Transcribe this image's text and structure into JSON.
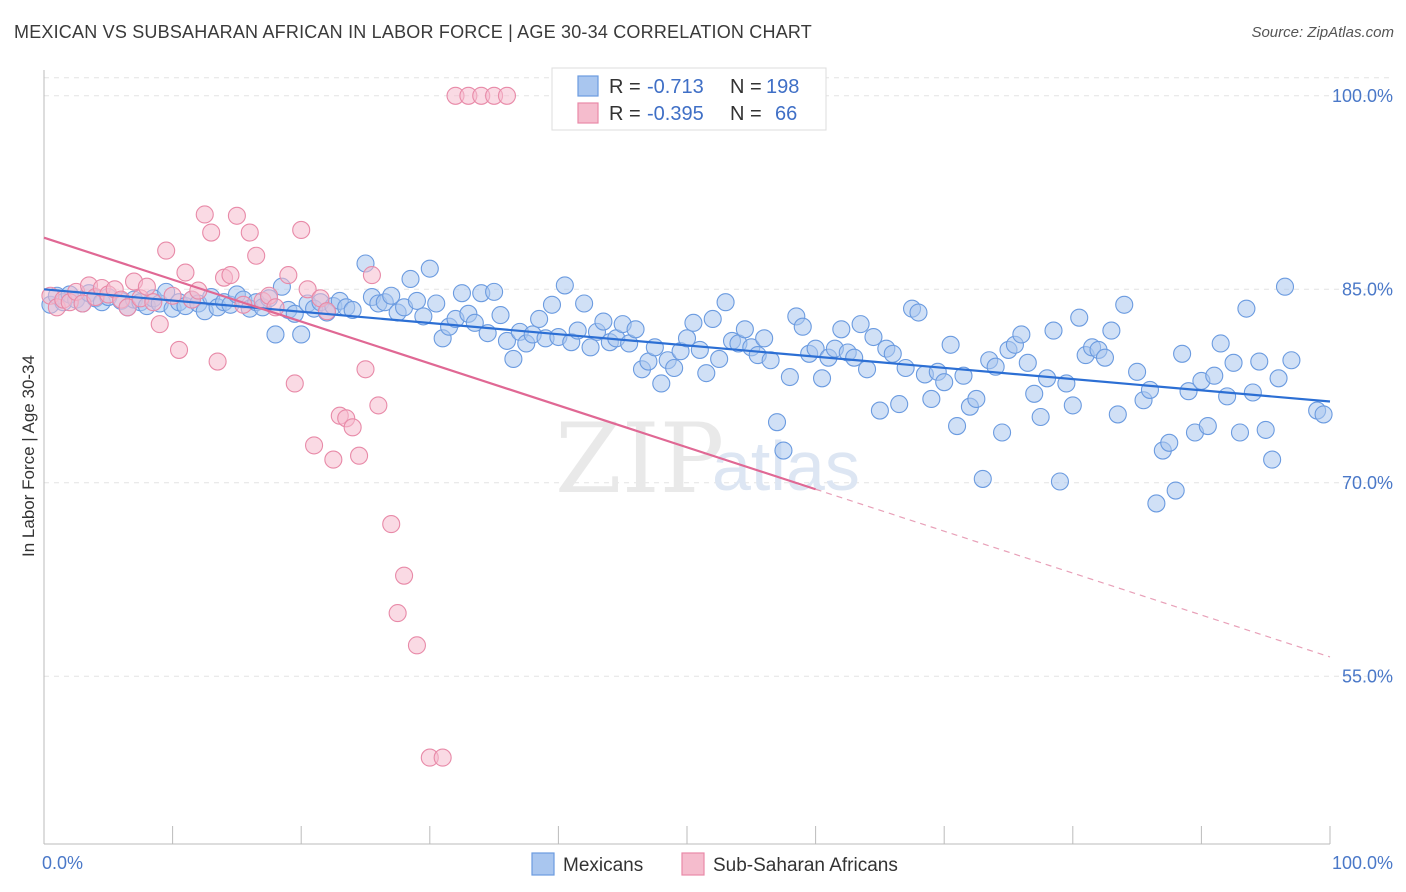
{
  "title": "MEXICAN VS SUBSAHARAN AFRICAN IN LABOR FORCE | AGE 30-34 CORRELATION CHART",
  "source": "Source: ZipAtlas.com",
  "watermark": {
    "a": "ZIP",
    "b": "atlas"
  },
  "chart_data": {
    "type": "scatter",
    "xlabel": "",
    "ylabel": "In Labor Force | Age 30-34",
    "xlim": [
      0,
      100
    ],
    "ylim": [
      42,
      102
    ],
    "x_tick_labels": [
      "0.0%",
      "100.0%"
    ],
    "y_ticks": [
      55,
      70,
      85,
      100
    ],
    "y_tick_labels": [
      "55.0%",
      "70.0%",
      "85.0%",
      "100.0%"
    ],
    "grid": true,
    "legend_position": "top-center",
    "series": [
      {
        "name": "Mexicans",
        "color": "#6b9be0",
        "fill": "#a9c6ef",
        "R": "-0.713",
        "N": "198",
        "trend": {
          "x0": 0,
          "y0": 85.0,
          "x1": 100,
          "y1": 76.3
        },
        "points": [
          [
            0.5,
            83.8
          ],
          [
            1,
            84.5
          ],
          [
            1.5,
            84.0
          ],
          [
            2,
            84.6
          ],
          [
            2.5,
            84.2
          ],
          [
            3,
            83.9
          ],
          [
            3.5,
            84.7
          ],
          [
            4,
            84.3
          ],
          [
            4.5,
            84.0
          ],
          [
            5,
            84.4
          ],
          [
            6,
            84.1
          ],
          [
            6.5,
            83.6
          ],
          [
            7,
            84.2
          ],
          [
            7.5,
            84.0
          ],
          [
            8,
            83.7
          ],
          [
            8.5,
            84.3
          ],
          [
            9,
            83.9
          ],
          [
            9.5,
            84.8
          ],
          [
            10,
            83.5
          ],
          [
            10.5,
            84.0
          ],
          [
            11,
            83.7
          ],
          [
            11.5,
            84.2
          ],
          [
            12,
            83.9
          ],
          [
            12.5,
            83.3
          ],
          [
            13,
            84.4
          ],
          [
            13.5,
            83.6
          ],
          [
            14,
            84.0
          ],
          [
            14.5,
            83.8
          ],
          [
            15,
            84.6
          ],
          [
            15.5,
            84.2
          ],
          [
            16,
            83.5
          ],
          [
            16.5,
            84.0
          ],
          [
            17,
            83.6
          ],
          [
            17.5,
            84.3
          ],
          [
            18,
            81.5
          ],
          [
            18.5,
            85.2
          ],
          [
            19,
            83.4
          ],
          [
            19.5,
            83.1
          ],
          [
            20,
            81.5
          ],
          [
            20.5,
            83.9
          ],
          [
            21,
            83.5
          ],
          [
            21.5,
            84.0
          ],
          [
            22,
            83.2
          ],
          [
            22.5,
            83.7
          ],
          [
            23,
            84.1
          ],
          [
            23.5,
            83.6
          ],
          [
            24,
            83.4
          ],
          [
            25,
            87.0
          ],
          [
            25.5,
            84.4
          ],
          [
            26,
            83.9
          ],
          [
            26.5,
            84.0
          ],
          [
            27,
            84.5
          ],
          [
            27.5,
            83.2
          ],
          [
            28,
            83.6
          ],
          [
            28.5,
            85.8
          ],
          [
            29,
            84.1
          ],
          [
            29.5,
            82.9
          ],
          [
            30,
            86.6
          ],
          [
            30.5,
            83.9
          ],
          [
            31,
            81.2
          ],
          [
            31.5,
            82.1
          ],
          [
            32,
            82.7
          ],
          [
            32.5,
            84.7
          ],
          [
            33,
            83.1
          ],
          [
            33.5,
            82.4
          ],
          [
            34,
            84.7
          ],
          [
            34.5,
            81.6
          ],
          [
            35,
            84.8
          ],
          [
            35.5,
            83.0
          ],
          [
            36,
            81.0
          ],
          [
            36.5,
            79.6
          ],
          [
            37,
            81.7
          ],
          [
            37.5,
            80.8
          ],
          [
            38,
            81.5
          ],
          [
            38.5,
            82.7
          ],
          [
            39,
            81.2
          ],
          [
            39.5,
            83.8
          ],
          [
            40,
            81.3
          ],
          [
            40.5,
            85.3
          ],
          [
            41,
            80.9
          ],
          [
            41.5,
            81.8
          ],
          [
            42,
            83.9
          ],
          [
            42.5,
            80.5
          ],
          [
            43,
            81.7
          ],
          [
            43.5,
            82.5
          ],
          [
            44,
            80.9
          ],
          [
            44.5,
            81.2
          ],
          [
            45,
            82.3
          ],
          [
            45.5,
            80.8
          ],
          [
            46,
            81.9
          ],
          [
            46.5,
            78.8
          ],
          [
            47,
            79.4
          ],
          [
            47.5,
            80.5
          ],
          [
            48,
            77.7
          ],
          [
            48.5,
            79.5
          ],
          [
            49,
            78.9
          ],
          [
            49.5,
            80.2
          ],
          [
            50,
            81.2
          ],
          [
            50.5,
            82.4
          ],
          [
            51,
            80.3
          ],
          [
            51.5,
            78.5
          ],
          [
            52,
            82.7
          ],
          [
            52.5,
            79.6
          ],
          [
            53,
            84.0
          ],
          [
            53.5,
            81.0
          ],
          [
            54,
            80.8
          ],
          [
            54.5,
            81.9
          ],
          [
            55,
            80.5
          ],
          [
            55.5,
            79.9
          ],
          [
            56,
            81.2
          ],
          [
            56.5,
            79.5
          ],
          [
            57,
            74.7
          ],
          [
            57.5,
            72.5
          ],
          [
            58,
            78.2
          ],
          [
            58.5,
            82.9
          ],
          [
            59,
            82.1
          ],
          [
            59.5,
            80.0
          ],
          [
            60,
            80.4
          ],
          [
            60.5,
            78.1
          ],
          [
            61,
            79.7
          ],
          [
            61.5,
            80.4
          ],
          [
            62,
            81.9
          ],
          [
            62.5,
            80.1
          ],
          [
            63,
            79.7
          ],
          [
            63.5,
            82.3
          ],
          [
            64,
            78.8
          ],
          [
            64.5,
            81.3
          ],
          [
            65,
            75.6
          ],
          [
            65.5,
            80.4
          ],
          [
            66,
            80.0
          ],
          [
            66.5,
            76.1
          ],
          [
            67,
            78.9
          ],
          [
            67.5,
            83.5
          ],
          [
            68,
            83.2
          ],
          [
            68.5,
            78.4
          ],
          [
            69,
            76.5
          ],
          [
            69.5,
            78.6
          ],
          [
            70,
            77.8
          ],
          [
            70.5,
            80.7
          ],
          [
            71,
            74.4
          ],
          [
            71.5,
            78.3
          ],
          [
            72,
            75.9
          ],
          [
            72.5,
            76.5
          ],
          [
            73,
            70.3
          ],
          [
            73.5,
            79.5
          ],
          [
            74,
            79.0
          ],
          [
            74.5,
            73.9
          ],
          [
            75,
            80.3
          ],
          [
            75.5,
            80.7
          ],
          [
            76,
            81.5
          ],
          [
            76.5,
            79.3
          ],
          [
            77,
            76.9
          ],
          [
            77.5,
            75.1
          ],
          [
            78,
            78.1
          ],
          [
            78.5,
            81.8
          ],
          [
            79,
            70.1
          ],
          [
            79.5,
            77.7
          ],
          [
            80,
            76.0
          ],
          [
            80.5,
            82.8
          ],
          [
            81,
            79.9
          ],
          [
            81.5,
            80.5
          ],
          [
            82,
            80.3
          ],
          [
            82.5,
            79.7
          ],
          [
            83,
            81.8
          ],
          [
            83.5,
            75.3
          ],
          [
            84,
            83.8
          ],
          [
            85,
            78.6
          ],
          [
            85.5,
            76.4
          ],
          [
            86,
            77.2
          ],
          [
            86.5,
            68.4
          ],
          [
            87,
            72.5
          ],
          [
            87.5,
            73.1
          ],
          [
            88,
            69.4
          ],
          [
            88.5,
            80.0
          ],
          [
            89,
            77.1
          ],
          [
            89.5,
            73.9
          ],
          [
            90,
            77.9
          ],
          [
            90.5,
            74.4
          ],
          [
            91,
            78.3
          ],
          [
            91.5,
            80.8
          ],
          [
            92,
            76.7
          ],
          [
            92.5,
            79.3
          ],
          [
            93,
            73.9
          ],
          [
            93.5,
            83.5
          ],
          [
            94,
            77.0
          ],
          [
            94.5,
            79.4
          ],
          [
            95,
            74.1
          ],
          [
            95.5,
            71.8
          ],
          [
            96,
            78.1
          ],
          [
            96.5,
            85.2
          ],
          [
            97,
            79.5
          ],
          [
            99,
            75.6
          ],
          [
            99.5,
            75.3
          ]
        ]
      },
      {
        "name": "Sub-Saharan Africans",
        "color": "#e88aa8",
        "fill": "#f5bccd",
        "R": "-0.395",
        "N": "66",
        "trend": {
          "x0": 0,
          "y0": 89.0,
          "x1": 60,
          "y1": 69.5
        },
        "trend_dashed": {
          "x0": 60,
          "y0": 69.5,
          "x1": 100,
          "y1": 56.5
        },
        "points": [
          [
            0.5,
            84.5
          ],
          [
            1,
            83.6
          ],
          [
            1.5,
            84.2
          ],
          [
            2,
            84.0
          ],
          [
            2.5,
            84.8
          ],
          [
            3,
            83.9
          ],
          [
            3.5,
            85.3
          ],
          [
            4,
            84.4
          ],
          [
            4.5,
            85.1
          ],
          [
            5,
            84.6
          ],
          [
            5.5,
            85.0
          ],
          [
            6,
            84.2
          ],
          [
            6.5,
            83.6
          ],
          [
            7,
            85.6
          ],
          [
            7.5,
            84.3
          ],
          [
            8,
            85.2
          ],
          [
            8.5,
            84.0
          ],
          [
            9,
            82.3
          ],
          [
            9.5,
            88.0
          ],
          [
            10,
            84.5
          ],
          [
            10.5,
            80.3
          ],
          [
            11,
            86.3
          ],
          [
            11.5,
            84.2
          ],
          [
            12,
            84.9
          ],
          [
            12.5,
            90.8
          ],
          [
            13,
            89.4
          ],
          [
            13.5,
            79.4
          ],
          [
            14,
            85.9
          ],
          [
            14.5,
            86.1
          ],
          [
            15,
            90.7
          ],
          [
            15.5,
            83.8
          ],
          [
            16,
            89.4
          ],
          [
            16.5,
            87.6
          ],
          [
            17,
            84.1
          ],
          [
            17.5,
            84.5
          ],
          [
            18,
            83.6
          ],
          [
            19,
            86.1
          ],
          [
            19.5,
            77.7
          ],
          [
            20,
            89.6
          ],
          [
            20.5,
            85.0
          ],
          [
            21,
            72.9
          ],
          [
            21.5,
            84.3
          ],
          [
            22,
            83.3
          ],
          [
            22.5,
            71.8
          ],
          [
            23,
            75.2
          ],
          [
            23.5,
            75.0
          ],
          [
            24,
            74.3
          ],
          [
            24.5,
            72.1
          ],
          [
            25,
            78.8
          ],
          [
            25.5,
            86.1
          ],
          [
            26,
            76.0
          ],
          [
            27,
            66.8
          ],
          [
            27.5,
            59.9
          ],
          [
            28,
            62.8
          ],
          [
            29,
            57.4
          ],
          [
            30,
            48.7
          ],
          [
            31,
            48.7
          ],
          [
            32,
            100
          ],
          [
            33,
            100
          ],
          [
            34,
            100
          ],
          [
            35,
            100
          ],
          [
            36,
            100
          ]
        ]
      }
    ]
  }
}
